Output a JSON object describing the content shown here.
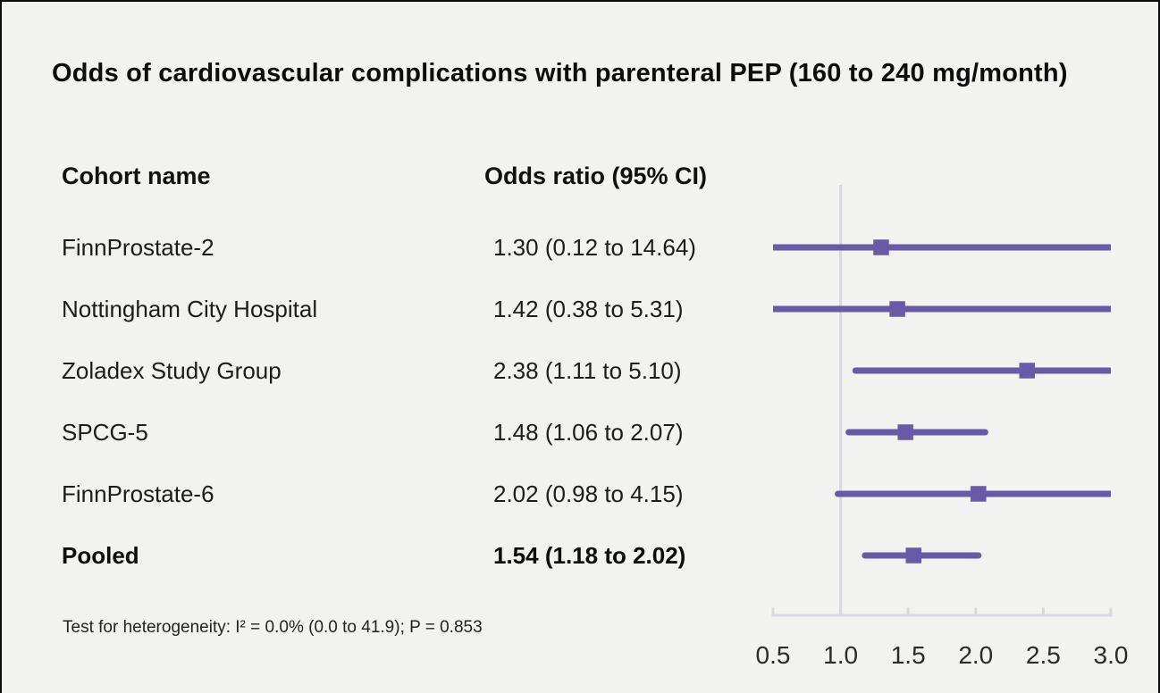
{
  "title": "Odds of cardiovascular complications with parenteral PEP (160 to 240 mg/month)",
  "columns": {
    "cohort": "Cohort name",
    "odds_ratio": "Odds ratio (95% CI)"
  },
  "footnote": "Test for heterogeneity: I² = 0.0% (0.0 to 41.9); P = 0.853",
  "colors": {
    "marker_purple": "#685aa6",
    "axis_gray": "#d6d9e0",
    "background": "#f2f2f1",
    "text": "#1c1c1c"
  },
  "chart_data": {
    "type": "forest",
    "xlim": [
      0.5,
      3.0
    ],
    "x_tick_labels": [
      "0.5",
      "1.0",
      "1.5",
      "2.0",
      "2.5",
      "3.0"
    ],
    "x_tick_values": [
      0.5,
      1.0,
      1.5,
      2.0,
      2.5,
      3.0
    ],
    "reference_line_x": 1.0,
    "rows": [
      {
        "label": "FinnProstate-2",
        "value": "1.30 (0.12 to 14.64)",
        "estimate": 1.3,
        "ci_low": 0.12,
        "ci_high": 14.64,
        "pooled": false
      },
      {
        "label": "Nottingham City Hospital",
        "value": "1.42 (0.38 to 5.31)",
        "estimate": 1.42,
        "ci_low": 0.38,
        "ci_high": 5.31,
        "pooled": false
      },
      {
        "label": "Zoladex Study Group",
        "value": "2.38 (1.11 to 5.10)",
        "estimate": 2.38,
        "ci_low": 1.11,
        "ci_high": 5.1,
        "pooled": false
      },
      {
        "label": "SPCG-5",
        "value": "1.48 (1.06 to 2.07)",
        "estimate": 1.48,
        "ci_low": 1.06,
        "ci_high": 2.07,
        "pooled": false
      },
      {
        "label": "FinnProstate-6",
        "value": "2.02 (0.98 to 4.15)",
        "estimate": 2.02,
        "ci_low": 0.98,
        "ci_high": 4.15,
        "pooled": false
      },
      {
        "label": "Pooled",
        "value": "1.54 (1.18 to 2.02)",
        "estimate": 1.54,
        "ci_low": 1.18,
        "ci_high": 2.02,
        "pooled": true
      }
    ]
  }
}
